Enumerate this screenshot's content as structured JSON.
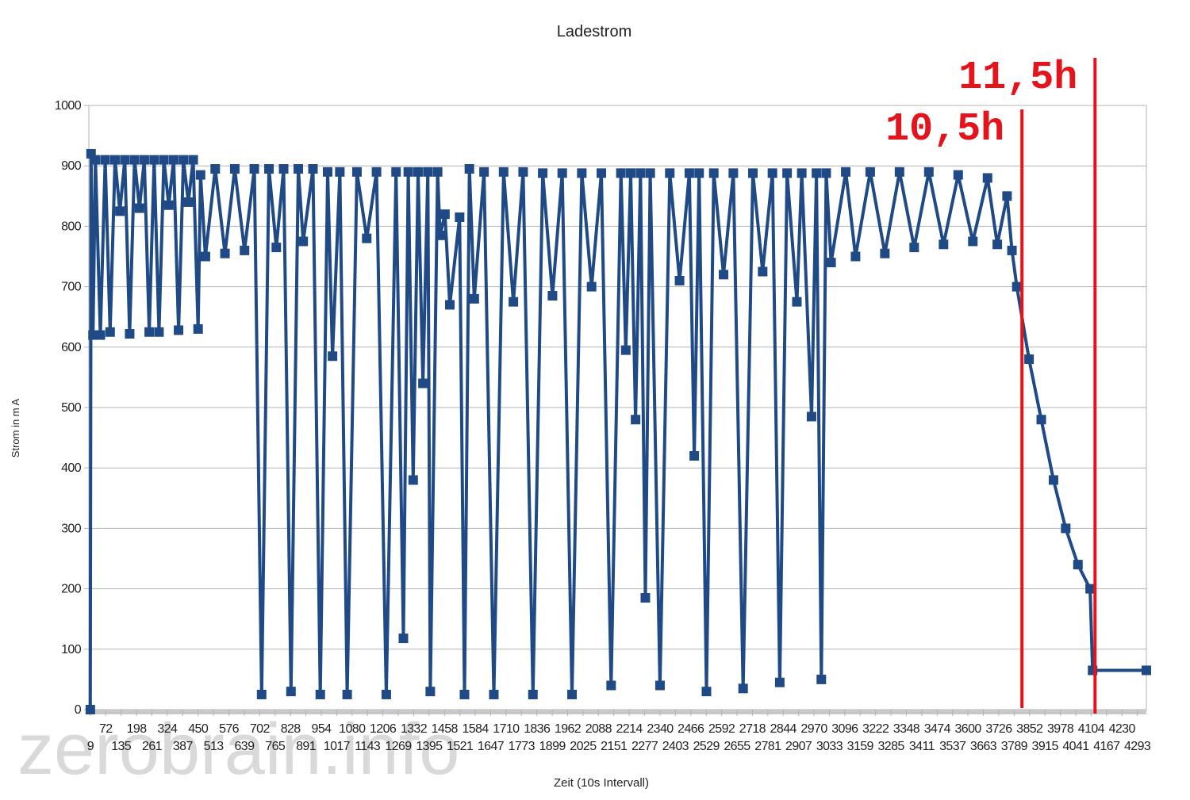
{
  "chart_data": {
    "type": "line",
    "title": "Ladestrom",
    "y_label": "Strom in m A",
    "x_label": "Zeit (10s Intervall)",
    "watermark": "zerobrain.info",
    "xlim": [
      3,
      4330
    ],
    "ylim": [
      0,
      1000
    ],
    "yticks": [
      0,
      100,
      200,
      300,
      400,
      500,
      600,
      700,
      800,
      900,
      1000
    ],
    "xticks": [
      9,
      72,
      135,
      198,
      261,
      324,
      387,
      450,
      513,
      576,
      639,
      702,
      765,
      828,
      891,
      954,
      1017,
      1080,
      1143,
      1206,
      1269,
      1332,
      1395,
      1458,
      1521,
      1584,
      1647,
      1710,
      1773,
      1836,
      1899,
      1962,
      2025,
      2088,
      2151,
      2214,
      2277,
      2340,
      2403,
      2466,
      2529,
      2592,
      2655,
      2718,
      2781,
      2844,
      2907,
      2970,
      3033,
      3096,
      3159,
      3222,
      3285,
      3348,
      3411,
      3474,
      3537,
      3600,
      3663,
      3726,
      3789,
      3852,
      3915,
      3978,
      4041,
      4104,
      4167,
      4230,
      4293
    ],
    "grid": true,
    "x": [
      9,
      12,
      20,
      30,
      50,
      70,
      90,
      110,
      130,
      150,
      170,
      190,
      210,
      230,
      250,
      270,
      290,
      310,
      330,
      350,
      370,
      390,
      410,
      430,
      450,
      460,
      480,
      520,
      560,
      600,
      640,
      680,
      710,
      740,
      770,
      800,
      830,
      860,
      880,
      920,
      950,
      980,
      1000,
      1030,
      1060,
      1100,
      1140,
      1180,
      1220,
      1260,
      1290,
      1310,
      1330,
      1350,
      1370,
      1390,
      1400,
      1430,
      1440,
      1460,
      1480,
      1520,
      1540,
      1560,
      1580,
      1620,
      1660,
      1700,
      1740,
      1780,
      1820,
      1860,
      1900,
      1940,
      1980,
      2020,
      2060,
      2100,
      2140,
      2180,
      2200,
      2220,
      2240,
      2260,
      2280,
      2300,
      2340,
      2380,
      2420,
      2460,
      2480,
      2500,
      2530,
      2560,
      2600,
      2640,
      2680,
      2720,
      2760,
      2800,
      2830,
      2860,
      2900,
      2920,
      2960,
      2980,
      3000,
      3020,
      3040,
      3100,
      3140,
      3200,
      3260,
      3320,
      3380,
      3440,
      3500,
      3560,
      3620,
      3680,
      3720,
      3760,
      3780,
      3800,
      3850,
      3900,
      3950,
      4000,
      4050,
      4100,
      4110,
      4330
    ],
    "series": [
      {
        "name": "Ladestrom",
        "color": "#1f4a86",
        "values": [
          0,
          920,
          620,
          910,
          620,
          910,
          625,
          910,
          825,
          910,
          622,
          910,
          830,
          910,
          625,
          910,
          625,
          910,
          835,
          910,
          628,
          910,
          840,
          910,
          630,
          885,
          750,
          895,
          755,
          895,
          760,
          895,
          25,
          895,
          765,
          895,
          30,
          895,
          775,
          895,
          25,
          890,
          585,
          890,
          25,
          890,
          780,
          890,
          25,
          890,
          118,
          890,
          380,
          890,
          540,
          890,
          30,
          890,
          785,
          820,
          670,
          815,
          25,
          895,
          680,
          890,
          25,
          890,
          675,
          890,
          25,
          888,
          685,
          888,
          25,
          888,
          700,
          888,
          40,
          888,
          595,
          888,
          480,
          888,
          185,
          888,
          40,
          888,
          710,
          888,
          420,
          888,
          30,
          888,
          720,
          888,
          35,
          888,
          725,
          888,
          45,
          888,
          675,
          888,
          485,
          888,
          50,
          888,
          740,
          890,
          750,
          890,
          755,
          890,
          765,
          890,
          770,
          885,
          775,
          880,
          770,
          850,
          760,
          700,
          580,
          480,
          380,
          300,
          240,
          200,
          65,
          65
        ]
      }
    ],
    "annotations": [
      {
        "text": "10,5h",
        "x": 3821,
        "color": "#e3141b"
      },
      {
        "text": "11,5h",
        "x": 4120,
        "color": "#e3141b"
      }
    ]
  }
}
